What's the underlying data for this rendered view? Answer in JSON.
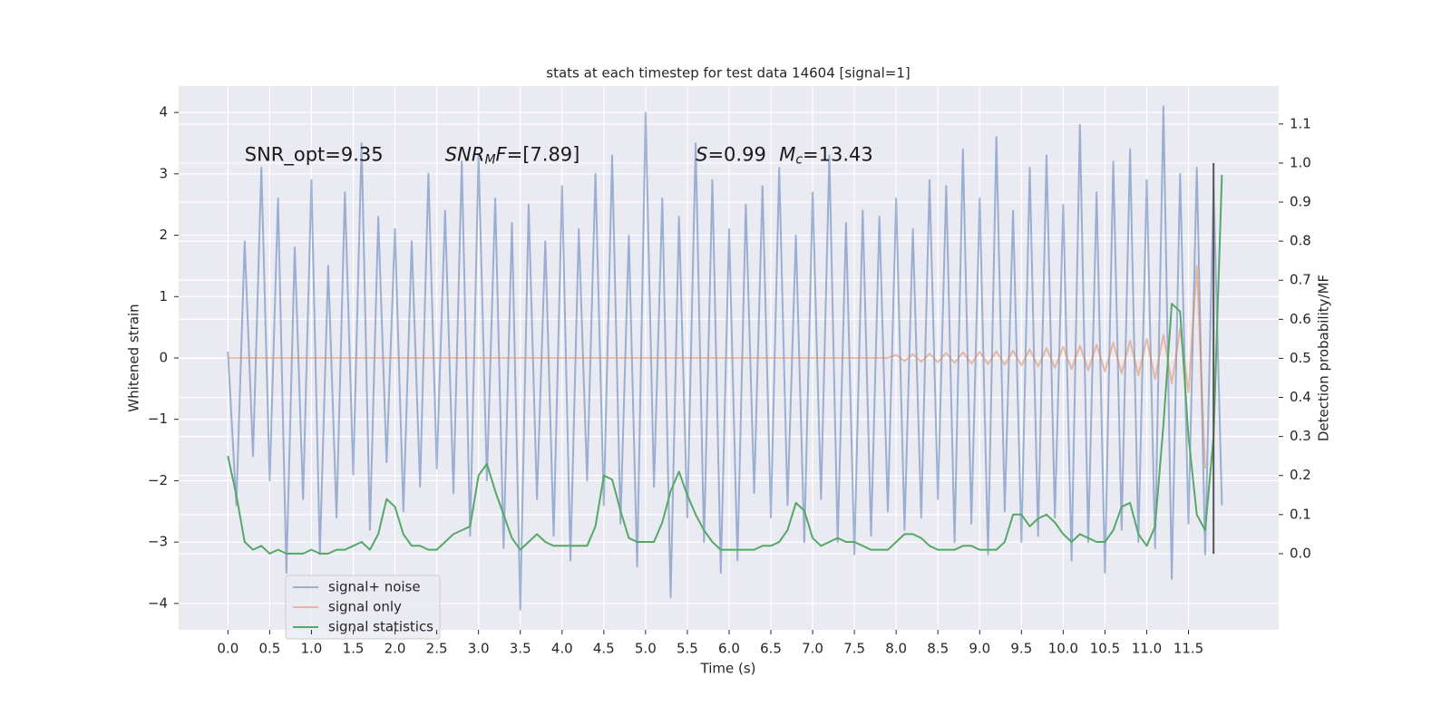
{
  "chart_data": {
    "type": "line",
    "title": "stats at each timestep for test data 14604 [signal=1]",
    "x_label": "Time (s)",
    "y_label": "Whitened strain",
    "y2_label": "Detection probability/MF",
    "annotations": [
      {
        "segments": [
          "SNR_opt=9.35"
        ],
        "x": 0.2,
        "y": 3.3
      },
      {
        "segments": [
          "SNR",
          "M",
          "F",
          "=[7.89]"
        ],
        "x": 2.6,
        "y": 3.3
      },
      {
        "segments": [
          "S",
          "=0.99"
        ],
        "x": 5.6,
        "y": 3.3
      },
      {
        "segments": [
          "M",
          "c",
          "=13.43"
        ],
        "x": 6.6,
        "y": 3.3
      }
    ],
    "vline": {
      "x": 11.8,
      "y2": [
        0,
        1.0
      ],
      "color": "#555555"
    },
    "x": [
      0.0,
      0.1,
      0.2,
      0.3,
      0.4,
      0.5,
      0.6,
      0.7,
      0.8,
      0.9,
      1.0,
      1.1,
      1.2,
      1.3,
      1.4,
      1.5,
      1.6,
      1.7,
      1.8,
      1.9,
      2.0,
      2.1,
      2.2,
      2.3,
      2.4,
      2.5,
      2.6,
      2.7,
      2.8,
      2.9,
      3.0,
      3.1,
      3.2,
      3.3,
      3.4,
      3.5,
      3.6,
      3.7,
      3.8,
      3.9,
      4.0,
      4.1,
      4.2,
      4.3,
      4.4,
      4.5,
      4.6,
      4.7,
      4.8,
      4.9,
      5.0,
      5.1,
      5.2,
      5.3,
      5.4,
      5.5,
      5.6,
      5.7,
      5.8,
      5.9,
      6.0,
      6.1,
      6.2,
      6.3,
      6.4,
      6.5,
      6.6,
      6.7,
      6.8,
      6.9,
      7.0,
      7.1,
      7.2,
      7.3,
      7.4,
      7.5,
      7.6,
      7.7,
      7.8,
      7.9,
      8.0,
      8.1,
      8.2,
      8.3,
      8.4,
      8.5,
      8.6,
      8.7,
      8.8,
      8.9,
      9.0,
      9.1,
      9.2,
      9.3,
      9.4,
      9.5,
      9.6,
      9.7,
      9.8,
      9.9,
      10.0,
      10.1,
      10.2,
      10.3,
      10.4,
      10.5,
      10.6,
      10.7,
      10.8,
      10.9,
      11.0,
      11.1,
      11.2,
      11.3,
      11.4,
      11.5,
      11.6,
      11.7,
      11.8,
      11.9
    ],
    "series": [
      {
        "name": "signal+ noise",
        "color": "#4c72b0",
        "opacity": 0.5,
        "values": [
          0.1,
          -2.4,
          1.9,
          -1.6,
          3.1,
          -2.0,
          2.6,
          -3.5,
          1.8,
          -2.3,
          2.9,
          -3.2,
          1.5,
          -2.6,
          2.7,
          -1.9,
          3.5,
          -2.8,
          2.3,
          -1.7,
          2.1,
          -2.5,
          1.9,
          -2.1,
          3.0,
          -1.8,
          2.4,
          -2.2,
          3.2,
          -2.9,
          3.3,
          -2.0,
          2.6,
          -3.1,
          2.2,
          -4.1,
          2.5,
          -2.3,
          1.9,
          -2.9,
          2.8,
          -3.3,
          2.1,
          -2.0,
          3.0,
          -2.4,
          3.3,
          -2.7,
          2.0,
          -3.4,
          4.0,
          -2.1,
          2.6,
          -3.9,
          2.3,
          -2.6,
          3.5,
          -3.0,
          2.9,
          -3.5,
          2.1,
          -3.3,
          2.5,
          -2.2,
          2.8,
          -2.6,
          3.1,
          -2.4,
          2.0,
          -3.0,
          2.7,
          -2.3,
          3.3,
          -3.0,
          2.2,
          -3.2,
          2.4,
          -2.9,
          2.3,
          -2.5,
          2.6,
          -2.8,
          2.1,
          -2.6,
          2.9,
          -2.3,
          2.8,
          -3.0,
          3.4,
          -2.7,
          2.6,
          -3.2,
          3.6,
          -2.5,
          2.4,
          -3.0,
          3.1,
          -2.9,
          3.3,
          -2.6,
          2.5,
          -3.3,
          3.8,
          -3.0,
          2.7,
          -3.5,
          3.2,
          -2.8,
          3.4,
          -3.0,
          2.9,
          -3.1,
          4.1,
          -3.6,
          3.0,
          -2.7,
          3.1,
          -3.2,
          2.8,
          -2.4
        ]
      },
      {
        "name": "signal only",
        "color": "#dd8452",
        "opacity": 0.5,
        "values": [
          0,
          0,
          0,
          0,
          0,
          0,
          0,
          0,
          0,
          0,
          0,
          0,
          0,
          0,
          0,
          0,
          0,
          0,
          0,
          0,
          0,
          0,
          0,
          0,
          0,
          0,
          0,
          0,
          0,
          0,
          0,
          0,
          0,
          0,
          0,
          0,
          0,
          0,
          0,
          0,
          0,
          0,
          0,
          0,
          0,
          0,
          0,
          0,
          0,
          0,
          0,
          0,
          0,
          0,
          0,
          0,
          0,
          0,
          0,
          0,
          0,
          0,
          0,
          0,
          0,
          0,
          0,
          0,
          0,
          0,
          0,
          0,
          0,
          0,
          0,
          0,
          0,
          0,
          0,
          0,
          0.05,
          -0.05,
          0.06,
          -0.06,
          0.07,
          -0.07,
          0.08,
          -0.08,
          0.09,
          -0.09,
          0.1,
          -0.1,
          0.11,
          -0.11,
          0.12,
          -0.12,
          0.14,
          -0.14,
          0.16,
          -0.16,
          0.18,
          -0.18,
          0.2,
          -0.2,
          0.22,
          -0.22,
          0.25,
          -0.25,
          0.28,
          -0.28,
          0.31,
          -0.34,
          0.38,
          -0.42,
          0.48,
          -0.56,
          1.5,
          -1.8,
          null,
          null
        ]
      },
      {
        "name": "signal statistics",
        "color": "#55a868",
        "opacity": 1,
        "axis": "y2",
        "values": [
          0.25,
          0.15,
          0.03,
          0.01,
          0.02,
          0.0,
          0.01,
          0.0,
          0.0,
          0.0,
          0.01,
          0.0,
          0.0,
          0.01,
          0.01,
          0.02,
          0.03,
          0.01,
          0.05,
          0.14,
          0.12,
          0.05,
          0.02,
          0.02,
          0.01,
          0.01,
          0.03,
          0.05,
          0.06,
          0.07,
          0.2,
          0.23,
          0.16,
          0.1,
          0.04,
          0.01,
          0.03,
          0.05,
          0.03,
          0.02,
          0.02,
          0.02,
          0.02,
          0.02,
          0.07,
          0.2,
          0.19,
          0.11,
          0.04,
          0.03,
          0.03,
          0.03,
          0.08,
          0.16,
          0.21,
          0.15,
          0.1,
          0.06,
          0.03,
          0.01,
          0.01,
          0.01,
          0.01,
          0.01,
          0.02,
          0.02,
          0.03,
          0.06,
          0.13,
          0.11,
          0.04,
          0.02,
          0.03,
          0.04,
          0.03,
          0.03,
          0.02,
          0.01,
          0.01,
          0.01,
          0.03,
          0.05,
          0.05,
          0.04,
          0.02,
          0.01,
          0.01,
          0.01,
          0.02,
          0.02,
          0.01,
          0.01,
          0.01,
          0.03,
          0.1,
          0.1,
          0.07,
          0.09,
          0.1,
          0.08,
          0.05,
          0.03,
          0.05,
          0.04,
          0.03,
          0.03,
          0.06,
          0.12,
          0.13,
          0.05,
          0.02,
          0.07,
          0.33,
          0.64,
          0.62,
          0.3,
          0.1,
          0.06,
          0.3,
          0.97
        ]
      }
    ],
    "xlim": [
      -0.59,
      12.58
    ],
    "xticks": [
      {
        "value": 0,
        "label": "0.0"
      },
      {
        "value": 0.5,
        "label": "0.5"
      },
      {
        "value": 1,
        "label": "1.0"
      },
      {
        "value": 1.5,
        "label": "1.5"
      },
      {
        "value": 2,
        "label": "2.0"
      },
      {
        "value": 2.5,
        "label": "2.5"
      },
      {
        "value": 3,
        "label": "3.0"
      },
      {
        "value": 3.5,
        "label": "3.5"
      },
      {
        "value": 4,
        "label": "4.0"
      },
      {
        "value": 4.5,
        "label": "4.5"
      },
      {
        "value": 5,
        "label": "5.0"
      },
      {
        "value": 5.5,
        "label": "5.5"
      },
      {
        "value": 6,
        "label": "6.0"
      },
      {
        "value": 6.5,
        "label": "6.5"
      },
      {
        "value": 7,
        "label": "7.0"
      },
      {
        "value": 7.5,
        "label": "7.5"
      },
      {
        "value": 8,
        "label": "8.0"
      },
      {
        "value": 8.5,
        "label": "8.5"
      },
      {
        "value": 9,
        "label": "9.0"
      },
      {
        "value": 9.5,
        "label": "9.5"
      },
      {
        "value": 10,
        "label": "10.0"
      },
      {
        "value": 10.5,
        "label": "10.5"
      },
      {
        "value": 11,
        "label": "11.0"
      },
      {
        "value": 11.5,
        "label": "11.5"
      }
    ],
    "ylim": [
      -4.43,
      4.43
    ],
    "yticks": [
      {
        "value": -4,
        "label": "−4"
      },
      {
        "value": -3,
        "label": "−3"
      },
      {
        "value": -2,
        "label": "−2"
      },
      {
        "value": -1,
        "label": "−1"
      },
      0,
      1,
      2,
      3,
      4
    ],
    "y2lim": [
      -0.195,
      1.197
    ],
    "y2ticks": [
      {
        "value": 0,
        "label": "0.0"
      },
      {
        "value": 0.1,
        "label": "0.1"
      },
      {
        "value": 0.2,
        "label": "0.2"
      },
      {
        "value": 0.3,
        "label": "0.3"
      },
      {
        "value": 0.4,
        "label": "0.4"
      },
      {
        "value": 0.5,
        "label": "0.5"
      },
      {
        "value": 0.6,
        "label": "0.6"
      },
      {
        "value": 0.7,
        "label": "0.7"
      },
      {
        "value": 0.8,
        "label": "0.8"
      },
      {
        "value": 0.9,
        "label": "0.9"
      },
      {
        "value": 1.0,
        "label": "1.0"
      },
      {
        "value": 1.1,
        "label": "1.1"
      }
    ],
    "grid": true,
    "legend": "lower left"
  }
}
